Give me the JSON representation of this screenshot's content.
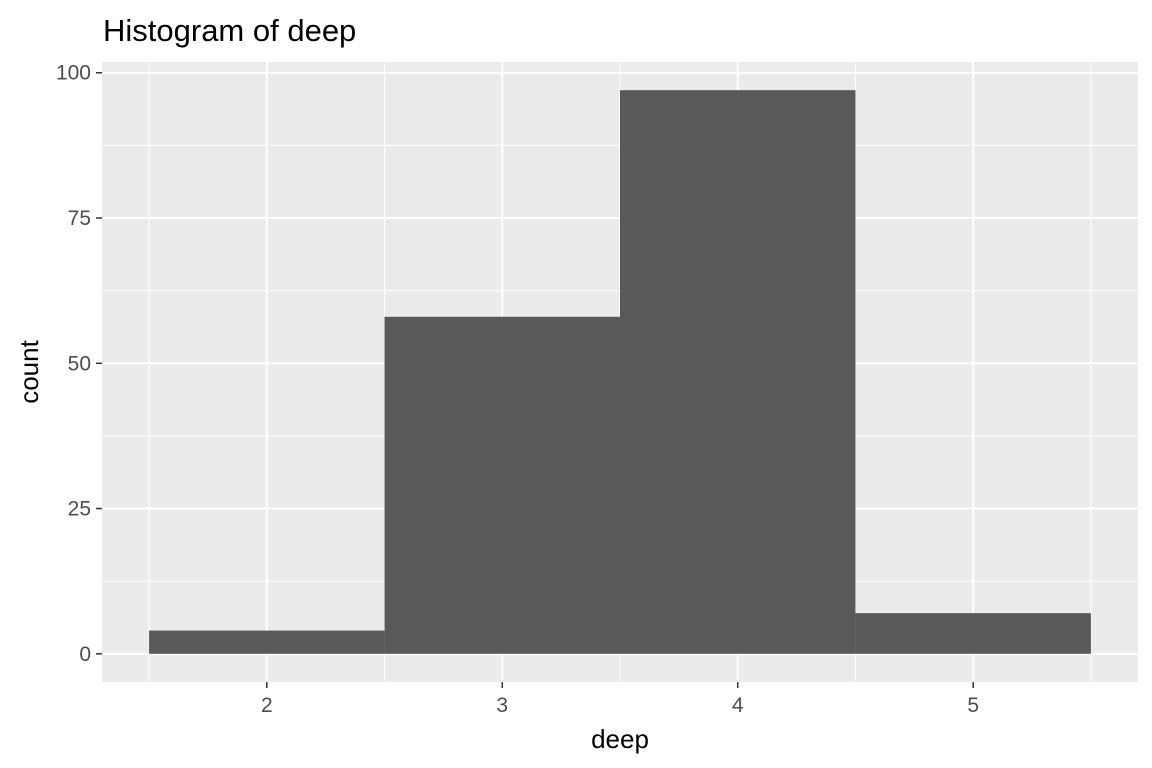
{
  "chart_data": {
    "type": "bar",
    "title": "Histogram of deep",
    "xlabel": "deep",
    "ylabel": "count",
    "bins": [
      {
        "x_start": 1.5,
        "x_end": 2.5,
        "count": 4
      },
      {
        "x_start": 2.5,
        "x_end": 3.5,
        "count": 58
      },
      {
        "x_start": 3.5,
        "x_end": 4.5,
        "count": 97
      },
      {
        "x_start": 4.5,
        "x_end": 5.5,
        "count": 7
      }
    ],
    "x_ticks": [
      2,
      3,
      4,
      5
    ],
    "y_ticks": [
      0,
      25,
      50,
      75,
      100
    ],
    "xlim": [
      1.3,
      5.7
    ],
    "ylim": [
      -4.85,
      101.85
    ],
    "grid": true,
    "colors": {
      "panel_background": "#EBEBEB",
      "grid_major": "#FFFFFF",
      "bar_fill": "#595959",
      "tick_text": "#4D4D4D"
    }
  }
}
